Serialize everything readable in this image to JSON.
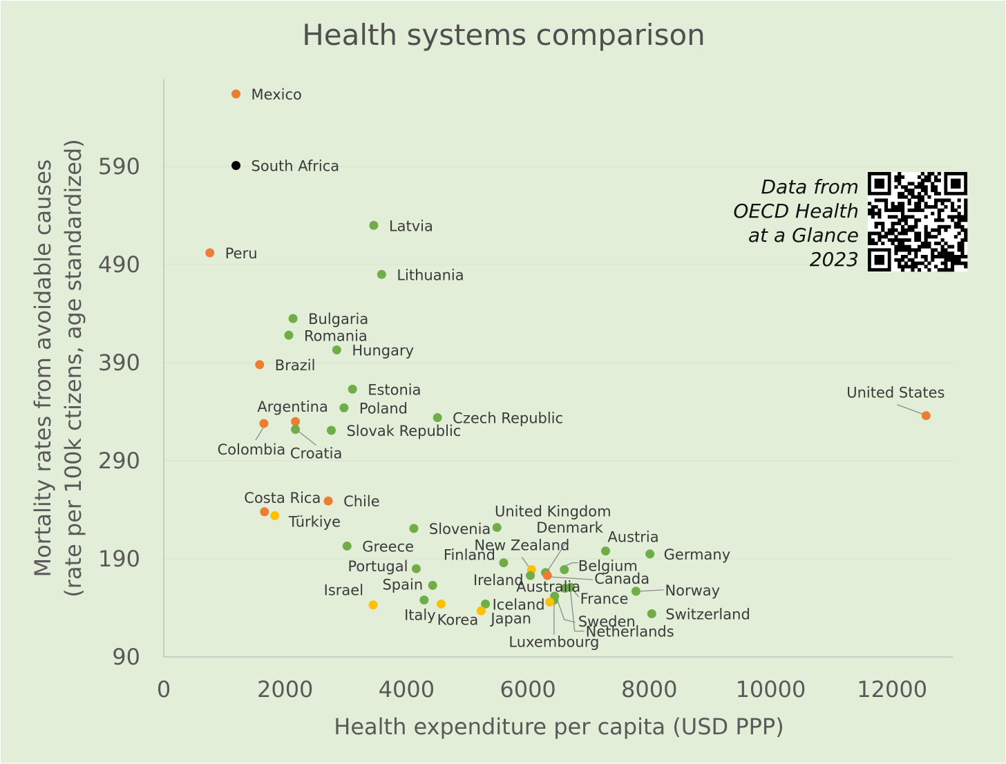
{
  "chart_data": {
    "type": "scatter",
    "title": "Health systems comparison",
    "xlabel": "Health expenditure per capita (USD PPP)",
    "ylabel_line1": "Mortality rates from avoidable causes",
    "ylabel_line2": "(rate per 100k ctizens, age standardized)",
    "xlim": [
      0,
      13000
    ],
    "ylim": [
      90,
      664
    ],
    "xticks": [
      0,
      2000,
      4000,
      6000,
      8000,
      10000,
      12000
    ],
    "yticks": [
      90,
      190,
      290,
      390,
      490,
      590
    ],
    "grid": "horizontal",
    "colors": {
      "green": "#70ad47",
      "orange": "#ed7d31",
      "yellow": "#ffc000",
      "black": "#000000"
    },
    "points": [
      {
        "name": "Mexico",
        "x": 1190,
        "y": 664,
        "color": "orange"
      },
      {
        "name": "South Africa",
        "x": 1190,
        "y": 591,
        "color": "black"
      },
      {
        "name": "Latvia",
        "x": 3460,
        "y": 530,
        "color": "green"
      },
      {
        "name": "Peru",
        "x": 760,
        "y": 502,
        "color": "orange"
      },
      {
        "name": "Lithuania",
        "x": 3590,
        "y": 480,
        "color": "green"
      },
      {
        "name": "Bulgaria",
        "x": 2130,
        "y": 435,
        "color": "green"
      },
      {
        "name": "Romania",
        "x": 2060,
        "y": 418,
        "color": "green"
      },
      {
        "name": "Hungary",
        "x": 2850,
        "y": 403,
        "color": "green"
      },
      {
        "name": "Brazil",
        "x": 1580,
        "y": 388,
        "color": "orange"
      },
      {
        "name": "Estonia",
        "x": 3110,
        "y": 363,
        "color": "green"
      },
      {
        "name": "Poland",
        "x": 2970,
        "y": 344,
        "color": "green"
      },
      {
        "name": "Czech Republic",
        "x": 4510,
        "y": 334,
        "color": "green"
      },
      {
        "name": "Argentina",
        "x": 2170,
        "y": 330,
        "color": "orange"
      },
      {
        "name": "Colombia",
        "x": 1650,
        "y": 328,
        "color": "orange"
      },
      {
        "name": "Croatia",
        "x": 2170,
        "y": 322,
        "color": "green"
      },
      {
        "name": "Slovak Republic",
        "x": 2760,
        "y": 321,
        "color": "green"
      },
      {
        "name": "United States",
        "x": 12560,
        "y": 336,
        "color": "orange"
      },
      {
        "name": "Chile",
        "x": 2710,
        "y": 249,
        "color": "orange"
      },
      {
        "name": "Costa Rica",
        "x": 1660,
        "y": 238,
        "color": "orange"
      },
      {
        "name": "Türkiye",
        "x": 1830,
        "y": 234,
        "color": "yellow"
      },
      {
        "name": "United Kingdom",
        "x": 5490,
        "y": 222,
        "color": "green"
      },
      {
        "name": "Slovenia",
        "x": 4120,
        "y": 221,
        "color": "green"
      },
      {
        "name": "Greece",
        "x": 3020,
        "y": 203,
        "color": "green"
      },
      {
        "name": "Austria",
        "x": 7280,
        "y": 198,
        "color": "green"
      },
      {
        "name": "Germany",
        "x": 8010,
        "y": 195,
        "color": "green"
      },
      {
        "name": "Finland",
        "x": 5600,
        "y": 186,
        "color": "green"
      },
      {
        "name": "New Zealand",
        "x": 6060,
        "y": 179,
        "color": "yellow"
      },
      {
        "name": "Belgium",
        "x": 6600,
        "y": 179,
        "color": "green"
      },
      {
        "name": "Portugal",
        "x": 4160,
        "y": 180,
        "color": "green"
      },
      {
        "name": "Denmark",
        "x": 6290,
        "y": 176,
        "color": "green"
      },
      {
        "name": "Canada",
        "x": 6320,
        "y": 173,
        "color": "orange"
      },
      {
        "name": "Ireland",
        "x": 6040,
        "y": 173,
        "color": "green"
      },
      {
        "name": "Spain",
        "x": 4430,
        "y": 163,
        "color": "green"
      },
      {
        "name": "France",
        "x": 6700,
        "y": 161,
        "color": "green"
      },
      {
        "name": "Netherlands",
        "x": 6610,
        "y": 160,
        "color": "green"
      },
      {
        "name": "Norway",
        "x": 7780,
        "y": 157,
        "color": "green"
      },
      {
        "name": "Sweden",
        "x": 6440,
        "y": 152,
        "color": "green"
      },
      {
        "name": "Luxembourg",
        "x": 6430,
        "y": 148,
        "color": "green"
      },
      {
        "name": "Australia",
        "x": 6360,
        "y": 146,
        "color": "yellow"
      },
      {
        "name": "Italy",
        "x": 4290,
        "y": 148,
        "color": "green"
      },
      {
        "name": "Israel",
        "x": 3450,
        "y": 143,
        "color": "yellow"
      },
      {
        "name": "Korea",
        "x": 4570,
        "y": 144,
        "color": "yellow"
      },
      {
        "name": "Iceland",
        "x": 5300,
        "y": 144,
        "color": "green"
      },
      {
        "name": "Japan",
        "x": 5230,
        "y": 137,
        "color": "yellow"
      },
      {
        "name": "Switzerland",
        "x": 8040,
        "y": 134,
        "color": "green"
      }
    ],
    "annotation": "Data from OECD Health at a Glance 2023"
  },
  "source_note": {
    "line1": "Data from",
    "line2": "OECD Health",
    "line3": "at a Glance",
    "line4": "2023"
  }
}
